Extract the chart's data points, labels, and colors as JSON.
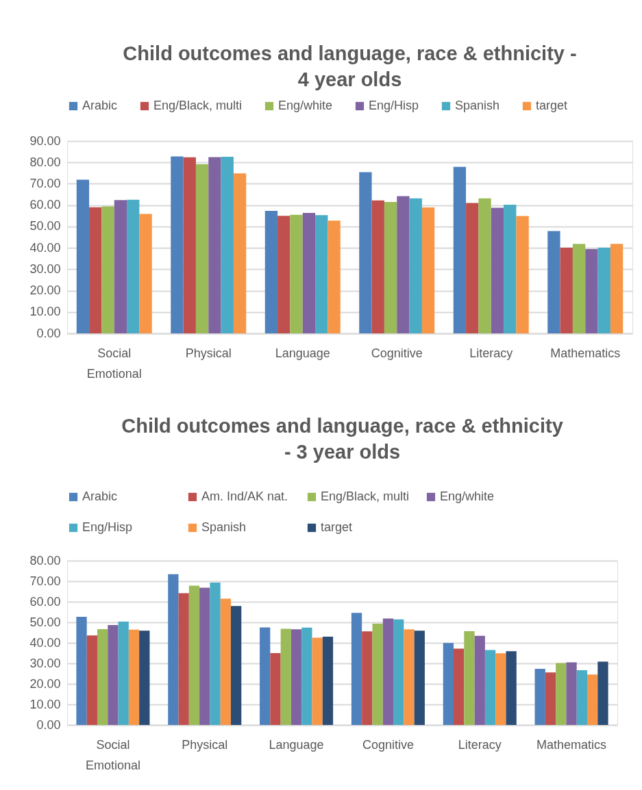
{
  "chart_data": [
    {
      "type": "bar",
      "title": "Child outcomes and language, race & ethnicity -\n4 year olds",
      "categories": [
        "Social Emotional",
        "Physical",
        "Language",
        "Cognitive",
        "Literacy",
        "Mathematics"
      ],
      "series": [
        {
          "name": "Arabic",
          "color": "#4f81bd",
          "values": [
            71.9,
            82.8,
            57.3,
            75.4,
            77.9,
            47.9
          ]
        },
        {
          "name": "Eng/Black, multi",
          "color": "#c0504d",
          "values": [
            59.0,
            82.4,
            55.0,
            62.2,
            61.0,
            40.1
          ]
        },
        {
          "name": "Eng/white",
          "color": "#9bbb59",
          "values": [
            59.4,
            79.2,
            55.5,
            61.5,
            63.2,
            41.9
          ]
        },
        {
          "name": "Eng/Hisp",
          "color": "#8064a2",
          "values": [
            62.4,
            82.5,
            56.4,
            64.2,
            58.8,
            39.5
          ]
        },
        {
          "name": "Spanish",
          "color": "#4bacc6",
          "values": [
            62.5,
            82.6,
            55.3,
            63.2,
            60.2,
            40.1
          ]
        },
        {
          "name": "target",
          "color": "#f79646",
          "values": [
            55.9,
            74.9,
            52.8,
            58.9,
            54.9,
            41.9
          ]
        }
      ],
      "ylim": [
        0,
        90
      ],
      "yticks": [
        {
          "value": 0,
          "label": "0.00"
        },
        {
          "value": 10,
          "label": "10.00"
        },
        {
          "value": 20,
          "label": "20.00"
        },
        {
          "value": 30,
          "label": "30.00"
        },
        {
          "value": 40,
          "label": "40.00"
        },
        {
          "value": 50,
          "label": "50.00"
        },
        {
          "value": 60,
          "label": "60.00"
        },
        {
          "value": 70,
          "label": "70.00"
        },
        {
          "value": 80,
          "label": "80.00"
        },
        {
          "value": 90,
          "label": "90.00"
        }
      ],
      "grid": "y",
      "legend": "top"
    },
    {
      "type": "bar",
      "title": "Child outcomes and language, race & ethnicity\n- 3 year olds",
      "categories": [
        "Social Emotional",
        "Physical",
        "Language",
        "Cognitive",
        "Literacy",
        "Mathematics"
      ],
      "series": [
        {
          "name": "Arabic",
          "color": "#4f81bd",
          "values": [
            52.7,
            73.4,
            47.5,
            54.6,
            39.9,
            27.3
          ]
        },
        {
          "name": "Am. Ind/AK nat.",
          "color": "#c0504d",
          "values": [
            43.6,
            64.2,
            35.0,
            45.6,
            37.2,
            25.6
          ]
        },
        {
          "name": "Eng/Black, multi",
          "color": "#9bbb59",
          "values": [
            46.7,
            67.8,
            46.8,
            49.3,
            45.7,
            30.2
          ]
        },
        {
          "name": "Eng/white",
          "color": "#8064a2",
          "values": [
            48.7,
            66.8,
            46.6,
            51.8,
            43.4,
            30.5
          ]
        },
        {
          "name": "Eng/Hisp",
          "color": "#4bacc6",
          "values": [
            50.3,
            69.3,
            47.4,
            51.4,
            36.5,
            26.7
          ]
        },
        {
          "name": "Spanish",
          "color": "#f79646",
          "values": [
            46.4,
            61.5,
            42.5,
            46.6,
            34.9,
            24.6
          ]
        },
        {
          "name": "target",
          "color": "#2c4d75",
          "values": [
            45.9,
            57.9,
            43.0,
            45.9,
            35.9,
            30.8
          ]
        }
      ],
      "ylim": [
        0,
        80
      ],
      "yticks": [
        {
          "value": 0,
          "label": "0.00"
        },
        {
          "value": 10,
          "label": "10.00"
        },
        {
          "value": 20,
          "label": "20.00"
        },
        {
          "value": 30,
          "label": "30.00"
        },
        {
          "value": 40,
          "label": "40.00"
        },
        {
          "value": 50,
          "label": "50.00"
        },
        {
          "value": 60,
          "label": "60.00"
        },
        {
          "value": 70,
          "label": "70.00"
        },
        {
          "value": 80,
          "label": "80.00"
        }
      ],
      "grid": "y",
      "legend": "top"
    }
  ]
}
